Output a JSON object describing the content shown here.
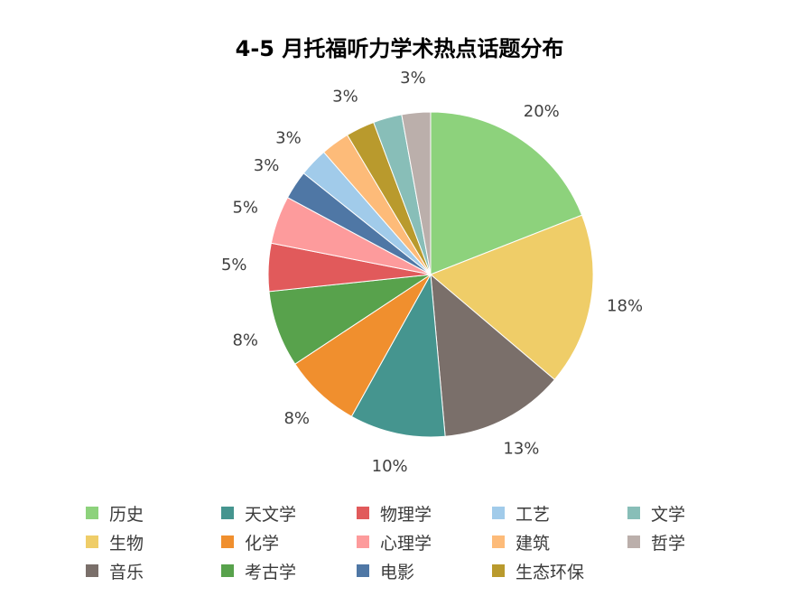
{
  "chart_data": {
    "type": "pie",
    "title": "4-5 月托福听力学术热点话题分布",
    "slices": [
      {
        "label": "历史",
        "value": 20,
        "display": "20%",
        "color": "#8dd27c"
      },
      {
        "label": "生物",
        "value": 18,
        "display": "18%",
        "color": "#efcd68"
      },
      {
        "label": "音乐",
        "value": 13,
        "display": "13%",
        "color": "#7a6f6a"
      },
      {
        "label": "天文学",
        "value": 10,
        "display": "10%",
        "color": "#45958f"
      },
      {
        "label": "化学",
        "value": 8,
        "display": "8%",
        "color": "#f08f2e"
      },
      {
        "label": "考古学",
        "value": 8,
        "display": "8%",
        "color": "#58a24c"
      },
      {
        "label": "物理学",
        "value": 5,
        "display": "5%",
        "color": "#e15a5b"
      },
      {
        "label": "心理学",
        "value": 5,
        "display": "5%",
        "color": "#fd9b9c"
      },
      {
        "label": "电影",
        "value": 3,
        "display": "3%",
        "color": "#4f77a5"
      },
      {
        "label": "工艺",
        "value": 3,
        "display": "3%",
        "color": "#a1cbea"
      },
      {
        "label": "建筑",
        "value": 3,
        "display": "",
        "color": "#fdbb79"
      },
      {
        "label": "生态环保",
        "value": 3,
        "display": "3%",
        "color": "#b99a2d"
      },
      {
        "label": "文学",
        "value": 3,
        "display": "",
        "color": "#88beb8"
      },
      {
        "label": "哲学",
        "value": 3,
        "display": "3%",
        "color": "#bbafab"
      }
    ],
    "legend": {
      "position": "bottom",
      "rows": [
        [
          "历史",
          "天文学",
          "物理学",
          "工艺",
          "文学"
        ],
        [
          "生物",
          "化学",
          "心理学",
          "建筑",
          "哲学"
        ],
        [
          "音乐",
          "考古学",
          "电影",
          "生态环保"
        ]
      ]
    }
  }
}
